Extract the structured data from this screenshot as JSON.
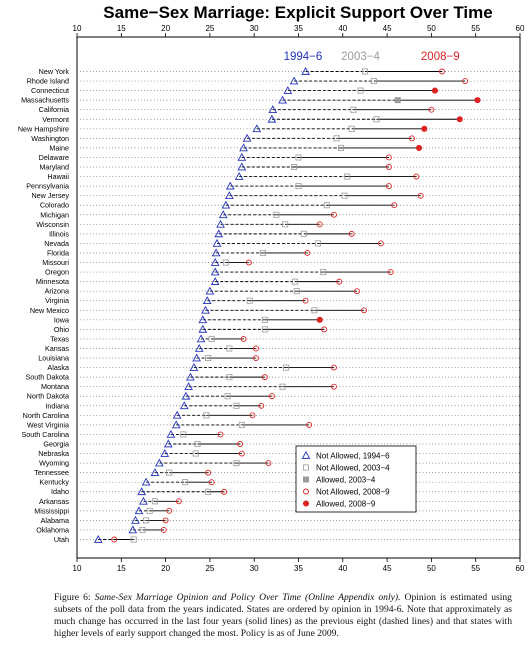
{
  "chart_data": {
    "type": "scatter",
    "title": "Same−Sex Marriage: Explicit Support Over Time",
    "xlim": [
      10,
      60
    ],
    "x_ticks": [
      "10",
      "15",
      "20",
      "25",
      "30",
      "35",
      "40",
      "45",
      "50",
      "55",
      "60"
    ],
    "grid": false,
    "legend_position": "bottom-right",
    "period_labels": [
      {
        "text": "1994−6",
        "color": "#2233bb",
        "x": 35.5
      },
      {
        "text": "2003−4",
        "color": "#9a9a9a",
        "x": 42.0
      },
      {
        "text": "2008−9",
        "color": "#dd2222",
        "x": 51.0
      }
    ],
    "legend": [
      {
        "label": "Not Allowed, 1994−6",
        "marker": "triangle-open",
        "color": "#2233bb"
      },
      {
        "label": "Not Allowed, 2003−4",
        "marker": "square-open",
        "color": "#9a9a9a"
      },
      {
        "label": "Allowed, 2003−4",
        "marker": "square-filled",
        "color": "#9a9a9a"
      },
      {
        "label": "Not Allowed, 2008−9",
        "marker": "circle-open",
        "color": "#dd2222"
      },
      {
        "label": "Allowed, 2008−9",
        "marker": "circle-filled",
        "color": "#dd2222"
      }
    ],
    "states": [
      {
        "name": "New York",
        "v1994": 35.8,
        "v2003": 42.5,
        "v2008": 51.2,
        "allowed2003": false,
        "allowed2008": false
      },
      {
        "name": "Rhode Island",
        "v1994": 34.5,
        "v2003": 43.5,
        "v2008": 53.8,
        "allowed2003": false,
        "allowed2008": false
      },
      {
        "name": "Connecticut",
        "v1994": 33.8,
        "v2003": 42.0,
        "v2008": 50.4,
        "allowed2003": false,
        "allowed2008": true
      },
      {
        "name": "Massachusetts",
        "v1994": 33.2,
        "v2003": 46.2,
        "v2008": 55.2,
        "allowed2003": true,
        "allowed2008": true
      },
      {
        "name": "California",
        "v1994": 32.1,
        "v2003": 41.2,
        "v2008": 50.0,
        "allowed2003": false,
        "allowed2008": false
      },
      {
        "name": "Vermont",
        "v1994": 32.0,
        "v2003": 43.8,
        "v2008": 53.2,
        "allowed2003": false,
        "allowed2008": true
      },
      {
        "name": "New Hampshire",
        "v1994": 30.3,
        "v2003": 41.0,
        "v2008": 49.2,
        "allowed2003": false,
        "allowed2008": true
      },
      {
        "name": "Washington",
        "v1994": 29.2,
        "v2003": 39.3,
        "v2008": 47.8,
        "allowed2003": false,
        "allowed2008": false
      },
      {
        "name": "Maine",
        "v1994": 28.8,
        "v2003": 39.8,
        "v2008": 48.6,
        "allowed2003": false,
        "allowed2008": true
      },
      {
        "name": "Delaware",
        "v1994": 28.6,
        "v2003": 35.0,
        "v2008": 45.2,
        "allowed2003": false,
        "allowed2008": false
      },
      {
        "name": "Maryland",
        "v1994": 28.6,
        "v2003": 34.5,
        "v2008": 45.2,
        "allowed2003": false,
        "allowed2008": false
      },
      {
        "name": "Hawaii",
        "v1994": 28.3,
        "v2003": 40.5,
        "v2008": 48.3,
        "allowed2003": false,
        "allowed2008": false
      },
      {
        "name": "Pennsylvania",
        "v1994": 27.3,
        "v2003": 35.0,
        "v2008": 45.2,
        "allowed2003": false,
        "allowed2008": false
      },
      {
        "name": "New Jersey",
        "v1994": 27.2,
        "v2003": 40.2,
        "v2008": 48.8,
        "allowed2003": false,
        "allowed2008": false
      },
      {
        "name": "Colorado",
        "v1994": 26.8,
        "v2003": 38.2,
        "v2008": 45.8,
        "allowed2003": false,
        "allowed2008": false
      },
      {
        "name": "Michigan",
        "v1994": 26.5,
        "v2003": 32.5,
        "v2008": 39.0,
        "allowed2003": false,
        "allowed2008": false
      },
      {
        "name": "Wisconsin",
        "v1994": 26.2,
        "v2003": 33.5,
        "v2008": 37.4,
        "allowed2003": false,
        "allowed2008": false
      },
      {
        "name": "Illinois",
        "v1994": 26.0,
        "v2003": 35.6,
        "v2008": 41.0,
        "allowed2003": false,
        "allowed2008": false
      },
      {
        "name": "Nevada",
        "v1994": 25.8,
        "v2003": 37.2,
        "v2008": 44.3,
        "allowed2003": false,
        "allowed2008": false
      },
      {
        "name": "Florida",
        "v1994": 25.7,
        "v2003": 31.0,
        "v2008": 36.0,
        "allowed2003": false,
        "allowed2008": false
      },
      {
        "name": "Missouri",
        "v1994": 25.6,
        "v2003": 26.8,
        "v2008": 29.4,
        "allowed2003": false,
        "allowed2008": false
      },
      {
        "name": "Oregon",
        "v1994": 25.6,
        "v2003": 37.8,
        "v2008": 45.4,
        "allowed2003": false,
        "allowed2008": false
      },
      {
        "name": "Minnesota",
        "v1994": 25.6,
        "v2003": 34.6,
        "v2008": 39.6,
        "allowed2003": false,
        "allowed2008": false
      },
      {
        "name": "Arizona",
        "v1994": 25.0,
        "v2003": 34.8,
        "v2008": 41.6,
        "allowed2003": false,
        "allowed2008": false
      },
      {
        "name": "Virginia",
        "v1994": 24.7,
        "v2003": 29.5,
        "v2008": 35.8,
        "allowed2003": false,
        "allowed2008": false
      },
      {
        "name": "New Mexico",
        "v1994": 24.5,
        "v2003": 36.8,
        "v2008": 42.4,
        "allowed2003": false,
        "allowed2008": false
      },
      {
        "name": "Iowa",
        "v1994": 24.2,
        "v2003": 31.2,
        "v2008": 37.4,
        "allowed2003": false,
        "allowed2008": true
      },
      {
        "name": "Ohio",
        "v1994": 24.2,
        "v2003": 31.2,
        "v2008": 37.9,
        "allowed2003": false,
        "allowed2008": false
      },
      {
        "name": "Texas",
        "v1994": 24.0,
        "v2003": 25.2,
        "v2008": 28.8,
        "allowed2003": false,
        "allowed2008": false
      },
      {
        "name": "Kansas",
        "v1994": 23.8,
        "v2003": 27.2,
        "v2008": 30.2,
        "allowed2003": false,
        "allowed2008": false
      },
      {
        "name": "Louisiana",
        "v1994": 23.5,
        "v2003": 24.8,
        "v2008": 30.2,
        "allowed2003": false,
        "allowed2008": false
      },
      {
        "name": "Alaska",
        "v1994": 23.2,
        "v2003": 33.6,
        "v2008": 39.0,
        "allowed2003": false,
        "allowed2008": false
      },
      {
        "name": "South Dakota",
        "v1994": 22.8,
        "v2003": 27.2,
        "v2008": 31.2,
        "allowed2003": false,
        "allowed2008": false
      },
      {
        "name": "Montana",
        "v1994": 22.6,
        "v2003": 33.2,
        "v2008": 39.0,
        "allowed2003": false,
        "allowed2008": false
      },
      {
        "name": "North Dakota",
        "v1994": 22.3,
        "v2003": 27.0,
        "v2008": 32.0,
        "allowed2003": false,
        "allowed2008": false
      },
      {
        "name": "Indiana",
        "v1994": 22.1,
        "v2003": 28.0,
        "v2008": 30.8,
        "allowed2003": false,
        "allowed2008": false
      },
      {
        "name": "North Carolina",
        "v1994": 21.3,
        "v2003": 24.6,
        "v2008": 29.8,
        "allowed2003": false,
        "allowed2008": false
      },
      {
        "name": "West Virginia",
        "v1994": 21.2,
        "v2003": 28.6,
        "v2008": 36.2,
        "allowed2003": false,
        "allowed2008": false
      },
      {
        "name": "South Carolina",
        "v1994": 20.6,
        "v2003": 22.0,
        "v2008": 26.2,
        "allowed2003": false,
        "allowed2008": false
      },
      {
        "name": "Georgia",
        "v1994": 20.3,
        "v2003": 23.6,
        "v2008": 28.4,
        "allowed2003": false,
        "allowed2008": false
      },
      {
        "name": "Nebraska",
        "v1994": 19.9,
        "v2003": 23.4,
        "v2008": 28.6,
        "allowed2003": false,
        "allowed2008": false
      },
      {
        "name": "Wyoming",
        "v1994": 19.3,
        "v2003": 28.0,
        "v2008": 31.6,
        "allowed2003": false,
        "allowed2008": false
      },
      {
        "name": "Tennessee",
        "v1994": 18.8,
        "v2003": 20.4,
        "v2008": 24.8,
        "allowed2003": false,
        "allowed2008": false
      },
      {
        "name": "Kentucky",
        "v1994": 17.8,
        "v2003": 22.2,
        "v2008": 25.2,
        "allowed2003": false,
        "allowed2008": false
      },
      {
        "name": "Idaho",
        "v1994": 17.3,
        "v2003": 24.8,
        "v2008": 26.6,
        "allowed2003": false,
        "allowed2008": false
      },
      {
        "name": "Arkansas",
        "v1994": 17.5,
        "v2003": 18.8,
        "v2008": 21.5,
        "allowed2003": false,
        "allowed2008": false
      },
      {
        "name": "Mississippi",
        "v1994": 17.0,
        "v2003": 18.2,
        "v2008": 20.4,
        "allowed2003": false,
        "allowed2008": false
      },
      {
        "name": "Alabama",
        "v1994": 16.6,
        "v2003": 17.8,
        "v2008": 20.0,
        "allowed2003": false,
        "allowed2008": false
      },
      {
        "name": "Oklahoma",
        "v1994": 16.3,
        "v2003": 17.4,
        "v2008": 19.8,
        "allowed2003": false,
        "allowed2008": false
      },
      {
        "name": "Utah",
        "v1994": 12.4,
        "v2003": 16.4,
        "v2008": 14.2,
        "allowed2003": false,
        "allowed2008": false
      }
    ]
  },
  "caption": {
    "fig_label": "Figure 6:",
    "fig_italic": "Same-Sex Marriage Opinion and Policy Over Time (Online Appendix only).",
    "fig_body": "Opinion is estimated using subsets of the poll data from the years indicated. States are ordered by opinion in 1994-6. Note that approximately as much change has occurred in the last four years (solid lines) as the previous eight (dashed lines) and that states with higher levels of early support changed the most. Policy is as of June 2009."
  },
  "colors": {
    "blue": "#2233bb",
    "gray": "#9a9a9a",
    "red": "#dd2222"
  }
}
